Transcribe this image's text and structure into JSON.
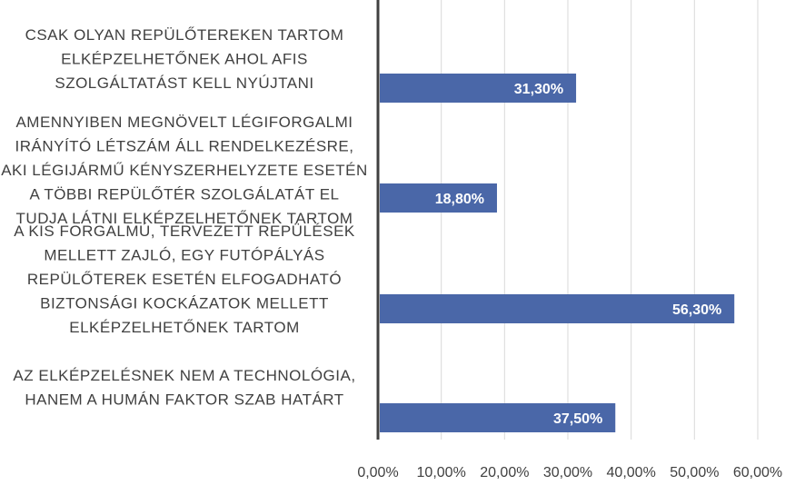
{
  "chart_data": {
    "type": "bar",
    "orientation": "horizontal",
    "categories": [
      [
        "CSAK OLYAN REPÜLŐTEREKEN TARTOM",
        "ELKÉPZELHETŐNEK AHOL AFIS",
        "SZOLGÁLTATÁST KELL NYÚJTANI"
      ],
      [
        "AMENNYIBEN MEGNÖVELT LÉGIFORGALMI",
        "IRÁNYÍTÓ LÉTSZÁM ÁLL RENDELKEZÉSRE,",
        "AKI LÉGIJÁRMŰ KÉNYSZERHELYZETE ESETÉN",
        "A TÖBBI REPÜLŐTÉR SZOLGÁLATÁT EL",
        "TUDJA LÁTNI ELKÉPZELHETŐNEK TARTOM"
      ],
      [
        "A KIS FORGALMÚ, TERVEZETT REPÜLÉSEK",
        "MELLETT ZAJLÓ, EGY FUTÓPÁLYÁS",
        "REPÜLŐTEREK ESETÉN ELFOGADHATÓ",
        "BIZTONSÁGI KOCKÁZATOK MELLETT",
        "ELKÉPZELHETŐNEK TARTOM"
      ],
      [
        "AZ ELKÉPZELÉSNEK NEM A TECHNOLÓGIA,",
        "HANEM A HUMÁN FAKTOR SZAB HATÁRT"
      ]
    ],
    "values": [
      31.3,
      18.8,
      56.3,
      37.5
    ],
    "data_labels": [
      "31,30%",
      "18,80%",
      "56,30%",
      "37,50%"
    ],
    "x_ticks": [
      "0,00%",
      "10,00%",
      "20,00%",
      "30,00%",
      "40,00%",
      "50,00%",
      "60,00%"
    ],
    "xlim": [
      0,
      60
    ],
    "grid": true,
    "bar_color": "#4a67a8",
    "grid_color": "#d9d9d9",
    "axis_color": "#404040",
    "title": "",
    "xlabel": "",
    "ylabel": ""
  }
}
